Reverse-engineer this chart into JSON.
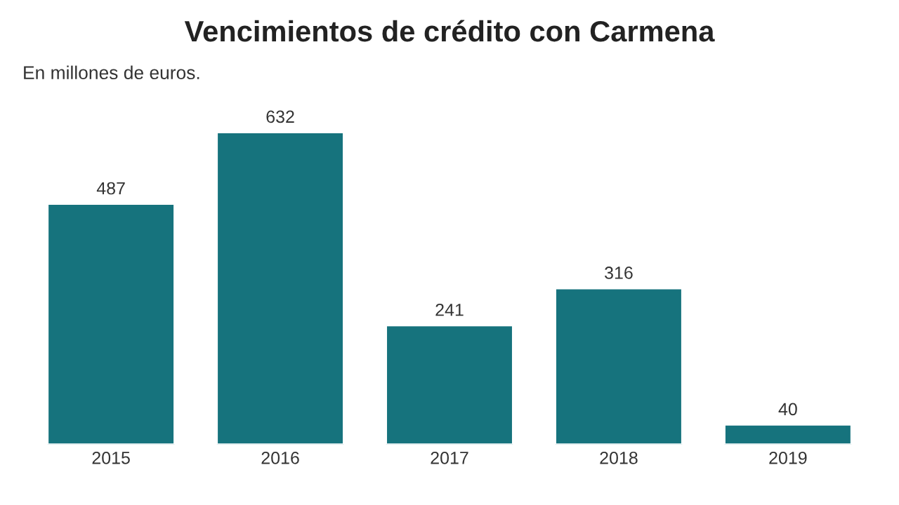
{
  "chart_data": {
    "type": "bar",
    "title": "Vencimientos de crédito con Carmena",
    "subtitle": "En millones de euros.",
    "categories": [
      "2015",
      "2016",
      "2017",
      "2018",
      "2019"
    ],
    "values": [
      487,
      632,
      241,
      316,
      40
    ],
    "color": "#16737d",
    "data_labels": true,
    "grid": false,
    "legend": false
  }
}
